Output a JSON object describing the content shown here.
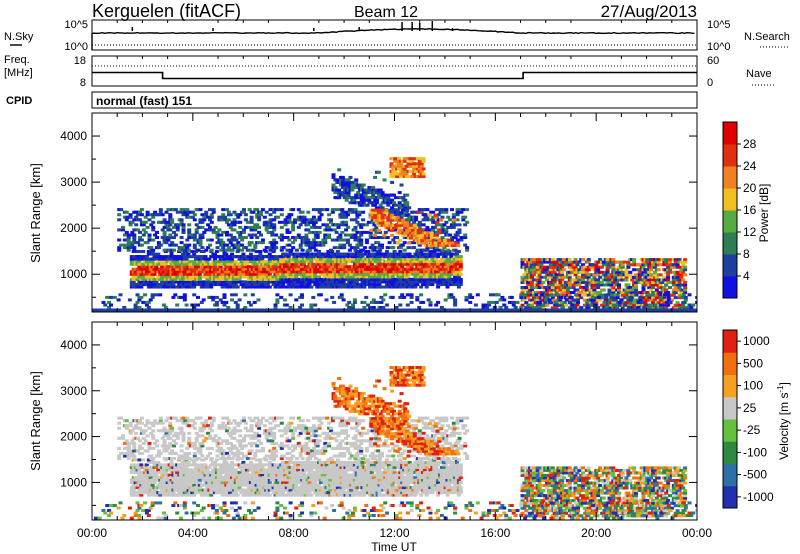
{
  "header": {
    "station": "Kerguelen (fitACF)",
    "beam": "Beam 12",
    "date": "27/Aug/2013"
  },
  "panels": {
    "nsky_label": "N.Sky",
    "nsky_ticks": [
      "10^5",
      "10^0"
    ],
    "nsearch_label": "N.Search",
    "nsearch_ticks": [
      "10^5",
      "10^0"
    ],
    "freq_label": "Freq.",
    "freq_unit": "[MHz]",
    "freq_ticks": [
      "18",
      "8"
    ],
    "nave_label": "Nave",
    "nave_ticks": [
      "60",
      "0"
    ],
    "cpid_label": "CPID",
    "cpid_value": "normal (fast) 151"
  },
  "chart_data": [
    {
      "type": "heatmap",
      "name": "power",
      "ylabel": "Slant Range [km]",
      "yticks": [
        1000,
        2000,
        3000,
        4000
      ],
      "ylim": [
        180,
        4500
      ],
      "xlim": [
        0,
        24
      ],
      "colorbar": {
        "label": "Power [dB]",
        "ticks": [
          4,
          8,
          12,
          16,
          20,
          24,
          28
        ],
        "colors": [
          "#1010e0",
          "#1e3fa0",
          "#2e7d55",
          "#55aa44",
          "#f0c020",
          "#f08020",
          "#e03010",
          "#e00000"
        ]
      }
    },
    {
      "type": "heatmap",
      "name": "velocity",
      "ylabel": "Slant Range [km]",
      "yticks": [
        1000,
        2000,
        3000,
        4000
      ],
      "ylim": [
        180,
        4500
      ],
      "xlim": [
        0,
        24
      ],
      "xticks": [
        "00:00",
        "04:00",
        "08:00",
        "12:00",
        "16:00",
        "20:00",
        "00:00"
      ],
      "xlabel": "Time UT",
      "colorbar": {
        "label": "Velocity [m s^-1]",
        "ticks": [
          "1000",
          "500",
          "100",
          "25",
          "-25",
          "-100",
          "-500",
          "-1000"
        ],
        "colors": [
          "#2030b0",
          "#2e6fa8",
          "#2e8a40",
          "#66c040",
          "#c8c8c8",
          "#f5a020",
          "#f07010",
          "#e02010"
        ]
      }
    },
    {
      "type": "line",
      "name": "frequency",
      "x": [
        0,
        2.8,
        2.8,
        17.1,
        17.1,
        24
      ],
      "y": [
        12.5,
        12.5,
        10.5,
        10.5,
        12.5,
        12.5
      ]
    }
  ]
}
